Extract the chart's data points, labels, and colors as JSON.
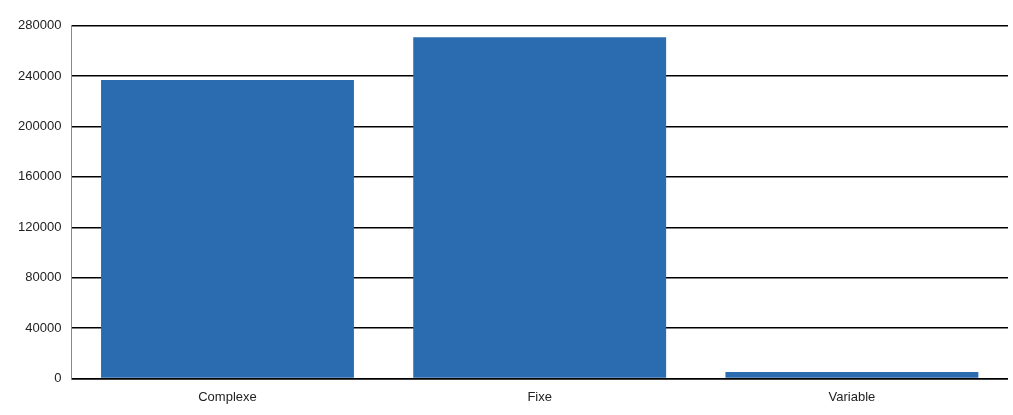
{
  "chart_data": {
    "type": "bar",
    "categories": [
      "Complexe",
      "Fixe",
      "Variable"
    ],
    "values": [
      237000,
      271000,
      5000
    ],
    "color": "#2b6cb0",
    "ylim": [
      0,
      280000
    ],
    "yticks": [
      0,
      40000,
      80000,
      120000,
      160000,
      200000,
      240000,
      280000
    ],
    "grid": "y",
    "legend": false
  }
}
